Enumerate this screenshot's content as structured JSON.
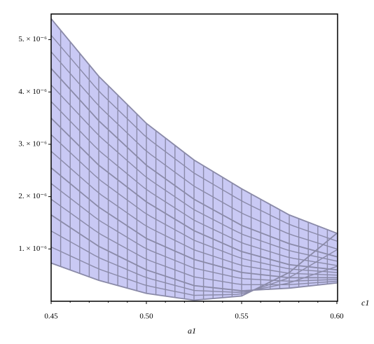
{
  "chart_data": {
    "type": "surface",
    "x_label": "a1",
    "z_label": "c1",
    "x": [
      0.45,
      0.475,
      0.5,
      0.525,
      0.55,
      0.575,
      0.6
    ],
    "series": [
      {
        "color": "#8a8aa8",
        "values": [
          5.4e-06,
          4.3e-06,
          3.4e-06,
          2.7e-06,
          2.15e-06,
          1.65e-06,
          1.3e-06
        ]
      },
      {
        "color": "#8a8aa8",
        "values": [
          4.45e-06,
          3.45e-06,
          2.6e-06,
          1.95e-06,
          1.45e-06,
          1.1e-06,
          8.5e-07
        ]
      },
      {
        "color": "#8a8aa8",
        "values": [
          3.5e-06,
          2.6e-06,
          1.9e-06,
          1.35e-06,
          9.5e-07,
          7e-07,
          6e-07
        ]
      },
      {
        "color": "#8a8aa8",
        "values": [
          2.55e-06,
          1.8e-06,
          1.2e-06,
          8e-07,
          5.5e-07,
          4.5e-07,
          4.5e-07
        ]
      },
      {
        "color": "#8a8aa8",
        "values": [
          1.65e-06,
          1.05e-06,
          6e-07,
          3e-07,
          2e-07,
          2.5e-07,
          3.5e-07
        ]
      },
      {
        "color": "#8a8aa8",
        "values": [
          7.3e-07,
          4e-07,
          1.5e-07,
          2e-08,
          1e-07,
          5.5e-07,
          1.3e-06
        ]
      }
    ],
    "fill_color": "#c9c9f4",
    "xlim": [
      0.45,
      0.6
    ],
    "ylim": [
      0,
      5.49e-06
    ],
    "xticks": [
      0.45,
      {
        "value": 0.5,
        "label": "0.50"
      },
      0.55,
      {
        "value": 0.6,
        "label": "0.60"
      }
    ],
    "yticks": [
      {
        "value": 1e-06,
        "label": "1. × 10⁻⁶"
      },
      {
        "value": 2e-06,
        "label": "2. × 10⁻⁶"
      },
      {
        "value": 3e-06,
        "label": "3. × 10⁻⁶"
      },
      {
        "value": 4e-06,
        "label": "4. × 10⁻⁶"
      },
      {
        "value": 5e-06,
        "label": "5. × 10⁻⁶"
      }
    ]
  }
}
